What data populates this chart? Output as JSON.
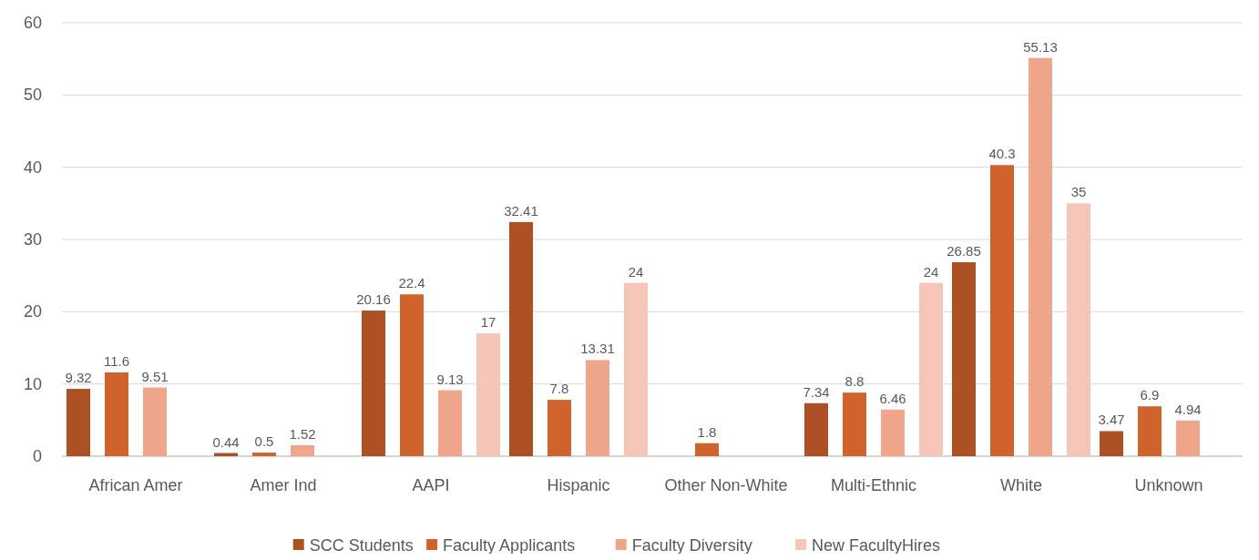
{
  "chart_data": {
    "type": "bar",
    "categories": [
      "African Amer",
      "Amer Ind",
      "AAPI",
      "Hispanic",
      "Other Non-White",
      "Multi-Ethnic",
      "White",
      "Unknown"
    ],
    "series": [
      {
        "name": "SCC Students",
        "color": "#ad5024",
        "values": [
          9.32,
          0.44,
          20.16,
          32.41,
          null,
          7.34,
          26.85,
          3.47
        ]
      },
      {
        "name": "Faculty Applicants",
        "color": "#d0622b",
        "values": [
          11.6,
          0.5,
          22.4,
          7.8,
          1.8,
          8.8,
          40.3,
          6.9
        ]
      },
      {
        "name": "Faculty Diversity",
        "color": "#f0a68a",
        "values": [
          9.51,
          1.52,
          9.13,
          13.31,
          null,
          6.46,
          55.13,
          4.94
        ]
      },
      {
        "name": "New FacultyHires",
        "color": "#f5c6b7",
        "values": [
          null,
          null,
          17,
          24,
          null,
          24,
          35,
          null
        ]
      }
    ],
    "ylim": [
      0,
      60
    ],
    "yticks": [
      0,
      10,
      20,
      30,
      40,
      50,
      60
    ],
    "grid": "y",
    "legend": "bottom",
    "data_labels": true
  }
}
